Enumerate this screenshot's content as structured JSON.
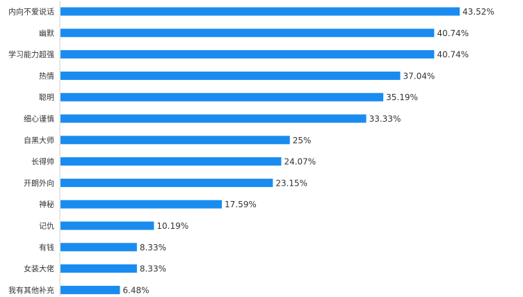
{
  "chart_data": {
    "type": "bar",
    "orientation": "horizontal",
    "categories": [
      "内向不爱说话",
      "幽默",
      "学习能力超强",
      "热情",
      "聪明",
      "细心谨慎",
      "自黑大师",
      "长得帅",
      "开朗外向",
      "神秘",
      "记仇",
      "有钱",
      "女装大佬",
      "我有其他补充"
    ],
    "values": [
      43.52,
      40.74,
      40.74,
      37.04,
      35.19,
      33.33,
      25,
      24.07,
      23.15,
      17.59,
      10.19,
      8.33,
      8.33,
      6.48
    ],
    "value_labels": [
      "43.52%",
      "40.74%",
      "40.74%",
      "37.04%",
      "35.19%",
      "33.33%",
      "25%",
      "24.07%",
      "23.15%",
      "17.59%",
      "10.19%",
      "8.33%",
      "8.33%",
      "6.48%"
    ],
    "xlim": [
      0,
      43.52
    ],
    "grid": false,
    "bar_color": "#1a8cf0",
    "axis_color": "#cccccc"
  }
}
